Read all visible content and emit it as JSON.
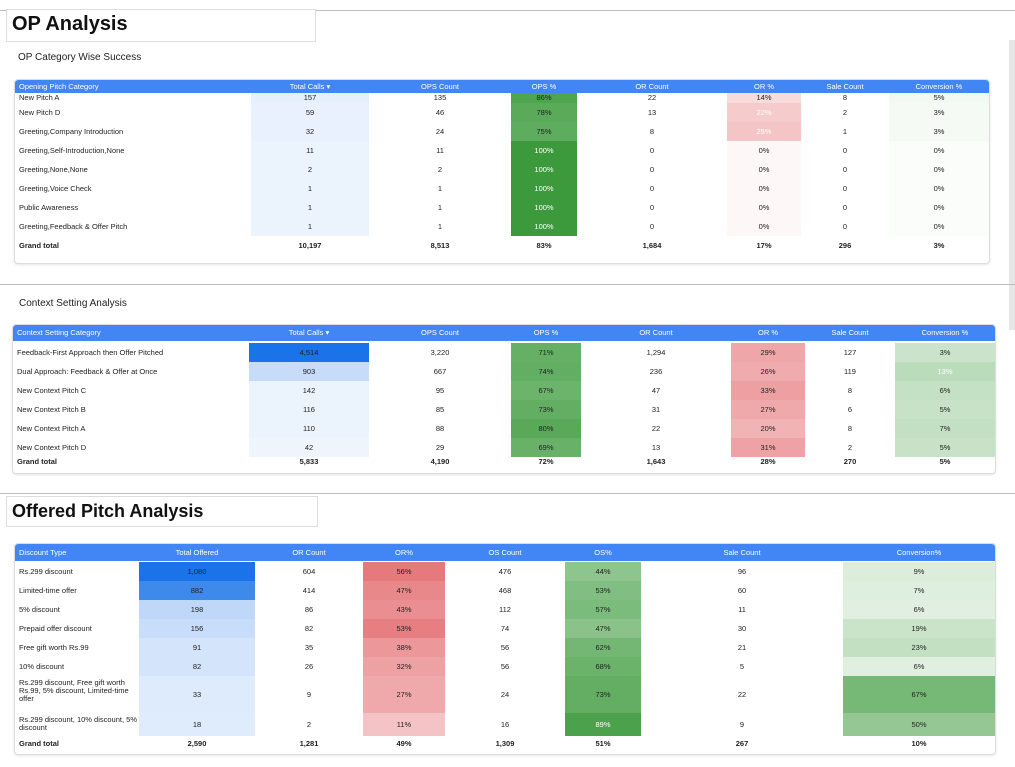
{
  "op_analysis": {
    "title": "OP Analysis",
    "subtitle": "OP Category Wise Success",
    "columns": [
      "Opening Pitch Category",
      "Total Calls ▾",
      "OPS Count",
      "OPS %",
      "OR Count",
      "OR %",
      "Sale Count",
      "Conversion %"
    ],
    "rows": [
      [
        "New Pitch A",
        "157",
        "135",
        "86%",
        "22",
        "14%",
        "8",
        "5%"
      ],
      [
        "New Pitch D",
        "59",
        "46",
        "78%",
        "13",
        "22%",
        "2",
        "3%"
      ],
      [
        "Greeting,Company Introduction",
        "32",
        "24",
        "75%",
        "8",
        "25%",
        "1",
        "3%"
      ],
      [
        "Greeting,Self-Introduction,None",
        "11",
        "11",
        "100%",
        "0",
        "0%",
        "0",
        "0%"
      ],
      [
        "Greeting,None,None",
        "2",
        "2",
        "100%",
        "0",
        "0%",
        "0",
        "0%"
      ],
      [
        "Greeting,Voice Check",
        "1",
        "1",
        "100%",
        "0",
        "0%",
        "0",
        "0%"
      ],
      [
        "Public Awareness",
        "1",
        "1",
        "100%",
        "0",
        "0%",
        "0",
        "0%"
      ],
      [
        "Greeting,Feedback & Offer Pitch",
        "1",
        "1",
        "100%",
        "0",
        "0%",
        "0",
        "0%"
      ]
    ],
    "total": [
      "Grand total",
      "10,197",
      "8,513",
      "83%",
      "1,684",
      "17%",
      "296",
      "3%"
    ],
    "shade": {
      "calls": [
        0.03,
        0.02,
        0.02,
        0.01,
        0.01,
        0.01,
        0.01,
        0.01
      ],
      "ops": [
        0.86,
        0.78,
        0.75,
        1.0,
        1.0,
        1.0,
        1.0,
        1.0
      ],
      "or": [
        0.14,
        0.22,
        0.25,
        0,
        0,
        0,
        0,
        0
      ],
      "conv": [
        0.05,
        0.03,
        0.03,
        0,
        0,
        0,
        0,
        0
      ]
    }
  },
  "context_analysis": {
    "subtitle": "Context Setting Analysis",
    "columns": [
      "Context Setting Category",
      "Total Calls ▾",
      "OPS Count",
      "OPS %",
      "OR Count",
      "OR %",
      "Sale Count",
      "Conversion %"
    ],
    "rows": [
      [
        "Feedback-First Approach then Offer Pitched",
        "4,514",
        "3,220",
        "71%",
        "1,294",
        "29%",
        "127",
        "3%"
      ],
      [
        "Dual Approach: Feedback & Offer at Once",
        "903",
        "667",
        "74%",
        "236",
        "26%",
        "119",
        "13%"
      ],
      [
        "New Context Pitch C",
        "142",
        "95",
        "67%",
        "47",
        "33%",
        "8",
        "6%"
      ],
      [
        "New Context Pitch B",
        "116",
        "85",
        "73%",
        "31",
        "27%",
        "6",
        "5%"
      ],
      [
        "New Context Pitch A",
        "110",
        "88",
        "80%",
        "22",
        "20%",
        "8",
        "7%"
      ],
      [
        "New Context Pitch D",
        "42",
        "29",
        "69%",
        "13",
        "31%",
        "2",
        "5%"
      ]
    ],
    "total": [
      "Grand total",
      "5,833",
      "4,190",
      "72%",
      "1,643",
      "28%",
      "270",
      "5%"
    ],
    "shade": {
      "calls": [
        1.0,
        0.2,
        0.03,
        0.03,
        0.03,
        0.01
      ],
      "ops": [
        0.71,
        0.74,
        0.67,
        0.73,
        0.8,
        0.69
      ],
      "or": [
        0.29,
        0.26,
        0.33,
        0.27,
        0.2,
        0.31
      ],
      "conv": [
        0.03,
        0.13,
        0.06,
        0.05,
        0.07,
        0.05
      ]
    }
  },
  "offered_analysis": {
    "title": "Offered Pitch Analysis",
    "columns": [
      "Discount Type",
      "Total Offered",
      "OR Count",
      "OR%",
      "OS Count",
      "OS%",
      "Sale Count",
      "Conversion%"
    ],
    "rows": [
      [
        "Rs.299 discount",
        "1,080",
        "604",
        "56%",
        "476",
        "44%",
        "96",
        "9%"
      ],
      [
        "Limited-time offer",
        "882",
        "414",
        "47%",
        "468",
        "53%",
        "60",
        "7%"
      ],
      [
        "5% discount",
        "198",
        "86",
        "43%",
        "112",
        "57%",
        "11",
        "6%"
      ],
      [
        "Prepaid offer discount",
        "156",
        "82",
        "53%",
        "74",
        "47%",
        "30",
        "19%"
      ],
      [
        "Free gift worth Rs.99",
        "91",
        "35",
        "38%",
        "56",
        "62%",
        "21",
        "23%"
      ],
      [
        "10% discount",
        "82",
        "26",
        "32%",
        "56",
        "68%",
        "5",
        "6%"
      ],
      [
        "Rs.299 discount, Free gift worth Rs.99, 5% discount, Limited-time offer",
        "33",
        "9",
        "27%",
        "24",
        "73%",
        "22",
        "67%"
      ],
      [
        "Rs.299 discount, 10% discount, 5% discount",
        "18",
        "2",
        "11%",
        "16",
        "89%",
        "9",
        "50%"
      ]
    ],
    "total": [
      "Grand total",
      "2,590",
      "1,281",
      "49%",
      "1,309",
      "51%",
      "267",
      "10%"
    ],
    "shade": {
      "calls": [
        1.0,
        0.82,
        0.18,
        0.14,
        0.08,
        0.08,
        0.03,
        0.02
      ],
      "or": [
        0.56,
        0.47,
        0.43,
        0.53,
        0.38,
        0.32,
        0.27,
        0.11
      ],
      "os": [
        0.44,
        0.53,
        0.57,
        0.47,
        0.62,
        0.68,
        0.73,
        0.89
      ],
      "conv": [
        0.09,
        0.07,
        0.06,
        0.19,
        0.23,
        0.06,
        0.67,
        0.5
      ]
    }
  },
  "colors": {
    "header_blue": "#4285f4",
    "blue_scale": "#1a73e8",
    "green_scale": "#3c9a3c",
    "red_scale": "#d93035"
  }
}
